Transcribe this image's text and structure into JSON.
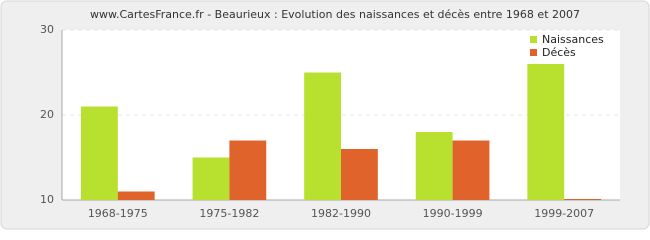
{
  "chart_data": {
    "type": "bar",
    "title": "www.CartesFrance.fr - Beaurieux : Evolution des naissances et décès entre 1968 et 2007",
    "categories": [
      "1968-1975",
      "1975-1982",
      "1982-1990",
      "1990-1999",
      "1999-2007"
    ],
    "series": [
      {
        "name": "Naissances",
        "color": "#b8e02e",
        "values": [
          21,
          15,
          25,
          18,
          26
        ]
      },
      {
        "name": "Décès",
        "color": "#e0632c",
        "values": [
          11,
          17,
          16,
          17,
          10
        ]
      }
    ],
    "ylim": [
      10,
      30
    ],
    "yticks": [
      10,
      20,
      30
    ],
    "grid": true,
    "legend": "top-right"
  }
}
